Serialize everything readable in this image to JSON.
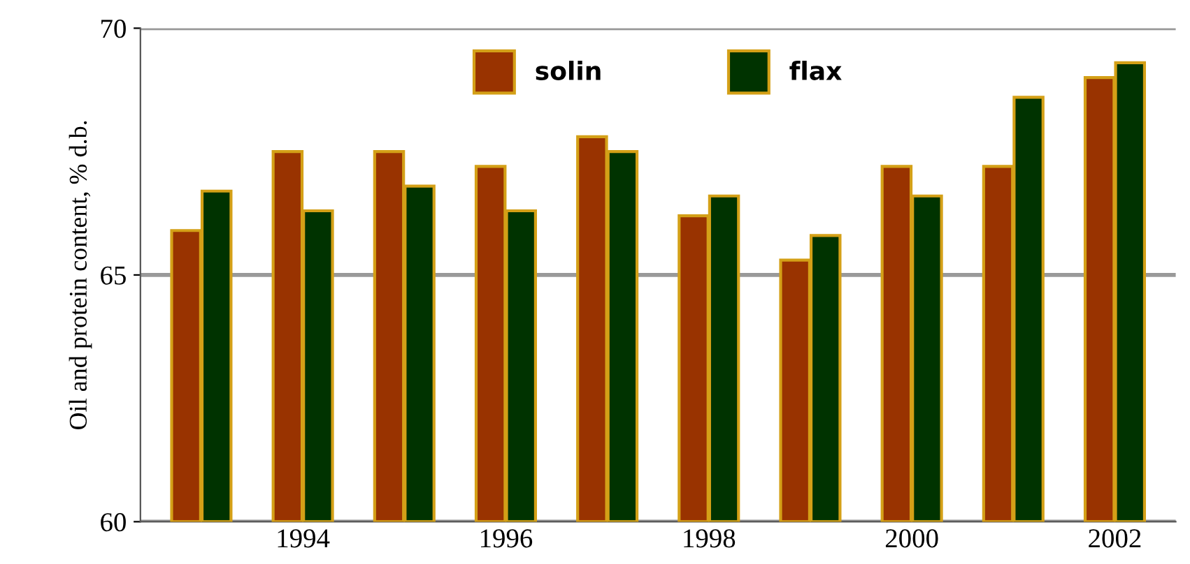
{
  "chart_data": {
    "type": "bar",
    "ylabel": "Oil and protein content, % d.b.",
    "categories": [
      null,
      "1994",
      null,
      "1996",
      null,
      "1998",
      null,
      "2000",
      null,
      "2002"
    ],
    "series": [
      {
        "name": "solin",
        "color": "#993300",
        "values": [
          65.9,
          67.5,
          67.5,
          67.2,
          67.8,
          66.2,
          65.3,
          67.2,
          67.2,
          69.0
        ]
      },
      {
        "name": "flax",
        "color": "#003300",
        "values": [
          66.7,
          66.3,
          66.8,
          66.3,
          67.5,
          66.6,
          65.8,
          66.6,
          68.6,
          69.3
        ]
      }
    ],
    "ylim": [
      60,
      70
    ],
    "yticks": [
      60,
      65,
      70
    ],
    "grid": "y",
    "legend": "top"
  }
}
